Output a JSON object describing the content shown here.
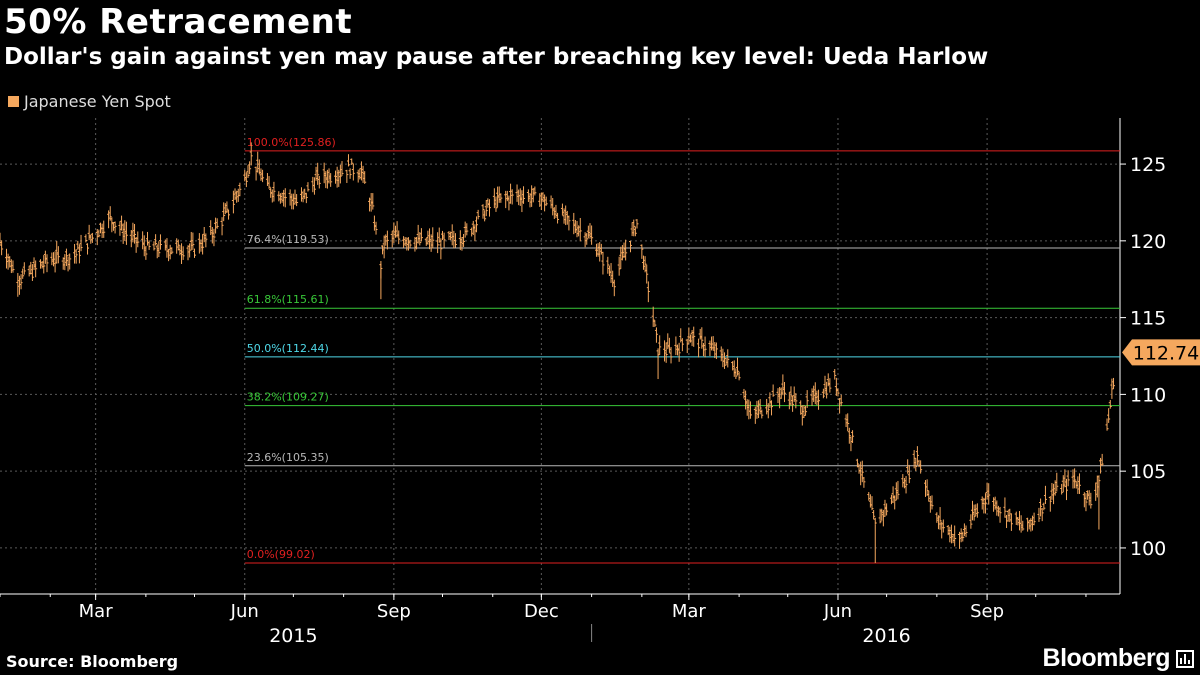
{
  "header": {
    "title": "50% Retracement",
    "subtitle": "Dollar's gain against yen may pause after breaching key level: Ueda Harlow"
  },
  "footer": {
    "source": "Source: Bloomberg",
    "logo": "Bloomberg"
  },
  "colors": {
    "background": "#000000",
    "series": "#f5a85e",
    "grid": "#5a5a5a",
    "level_red": "#e02020",
    "level_green": "#38c838",
    "level_cyan": "#4fd8e8",
    "level_gray": "#b8b8b8",
    "label_bg": "#f5a85e"
  },
  "chart_data": {
    "type": "line",
    "subtype": "ohlc-bars",
    "title": "50% Retracement",
    "subtitle": "Dollar's gain against yen may pause after breaching key level: Ueda Harlow",
    "legend": {
      "position": "top-left",
      "entries": [
        "Japanese Yen Spot"
      ]
    },
    "grid": true,
    "x_range": [
      "2015-01-01",
      "2016-11-22"
    ],
    "y_range": [
      97,
      128
    ],
    "y_ticks": [
      100,
      105,
      110,
      115,
      120,
      125
    ],
    "y_axis_position": "right",
    "x_ticks": [
      {
        "date": "2015-03-01",
        "label": "Mar"
      },
      {
        "date": "2015-06-01",
        "label": "Jun"
      },
      {
        "date": "2015-09-01",
        "label": "Sep"
      },
      {
        "date": "2015-12-01",
        "label": "Dec"
      },
      {
        "date": "2016-03-01",
        "label": "Mar"
      },
      {
        "date": "2016-06-01",
        "label": "Jun"
      },
      {
        "date": "2016-09-01",
        "label": "Sep"
      }
    ],
    "year_labels": [
      {
        "date": "2015-07-01",
        "label": "2015"
      },
      {
        "date": "2016-07-01",
        "label": "2016"
      }
    ],
    "year_divider": "2016-01-01",
    "last_value": 112.74,
    "last_value_label": "112.74",
    "levels": [
      {
        "label": "100.0%(125.86)",
        "value": 125.86,
        "color": "red"
      },
      {
        "label": "76.4%(119.53)",
        "value": 119.53,
        "color": "gray"
      },
      {
        "label": "61.8%(115.61)",
        "value": 115.61,
        "color": "green"
      },
      {
        "label": "50.0%(112.44)",
        "value": 112.44,
        "color": "cyan"
      },
      {
        "label": "38.2%(109.27)",
        "value": 109.27,
        "color": "green"
      },
      {
        "label": "23.6%(105.35)",
        "value": 105.35,
        "color": "gray"
      },
      {
        "label": "0.0%(99.02)",
        "value": 99.02,
        "color": "red"
      }
    ],
    "levels_start": "2015-06-01",
    "series": [
      {
        "name": "Japanese Yen Spot",
        "x": [
          "2015-01-01",
          "2015-01-12",
          "2015-01-20",
          "2015-02-01",
          "2015-02-15",
          "2015-03-01",
          "2015-03-10",
          "2015-03-20",
          "2015-04-01",
          "2015-04-15",
          "2015-05-01",
          "2015-05-12",
          "2015-05-22",
          "2015-06-01",
          "2015-06-05",
          "2015-06-15",
          "2015-06-25",
          "2015-07-05",
          "2015-07-15",
          "2015-07-25",
          "2015-08-05",
          "2015-08-12",
          "2015-08-19",
          "2015-08-24",
          "2015-08-26",
          "2015-09-01",
          "2015-09-15",
          "2015-10-01",
          "2015-10-15",
          "2015-11-01",
          "2015-11-15",
          "2015-12-01",
          "2015-12-15",
          "2016-01-01",
          "2016-01-15",
          "2016-01-29",
          "2016-02-05",
          "2016-02-11",
          "2016-02-20",
          "2016-03-01",
          "2016-03-15",
          "2016-04-01",
          "2016-04-08",
          "2016-04-20",
          "2016-04-28",
          "2016-05-10",
          "2016-05-30",
          "2016-06-10",
          "2016-06-24",
          "2016-06-28",
          "2016-07-10",
          "2016-07-20",
          "2016-08-01",
          "2016-08-15",
          "2016-09-01",
          "2016-09-10",
          "2016-09-25",
          "2016-10-10",
          "2016-10-25",
          "2016-11-04",
          "2016-11-09",
          "2016-11-15",
          "2016-11-20"
        ],
        "values": [
          120.0,
          117.5,
          118.0,
          118.8,
          119.0,
          120.5,
          121.5,
          120.5,
          119.6,
          119.5,
          119.5,
          120.5,
          122.0,
          124.0,
          125.5,
          123.5,
          123.0,
          122.5,
          124.0,
          124.3,
          124.8,
          124.5,
          122.0,
          118.5,
          119.8,
          120.3,
          120.0,
          119.9,
          120.4,
          122.5,
          123.0,
          122.8,
          121.5,
          120.2,
          117.5,
          121.2,
          117.0,
          113.0,
          112.8,
          113.8,
          113.0,
          111.5,
          108.5,
          109.5,
          110.3,
          109.0,
          111.0,
          107.0,
          101.5,
          102.2,
          104.0,
          106.0,
          101.8,
          100.5,
          103.5,
          102.5,
          101.2,
          103.5,
          104.5,
          103.0,
          104.5,
          108.5,
          112.74
        ]
      }
    ]
  }
}
